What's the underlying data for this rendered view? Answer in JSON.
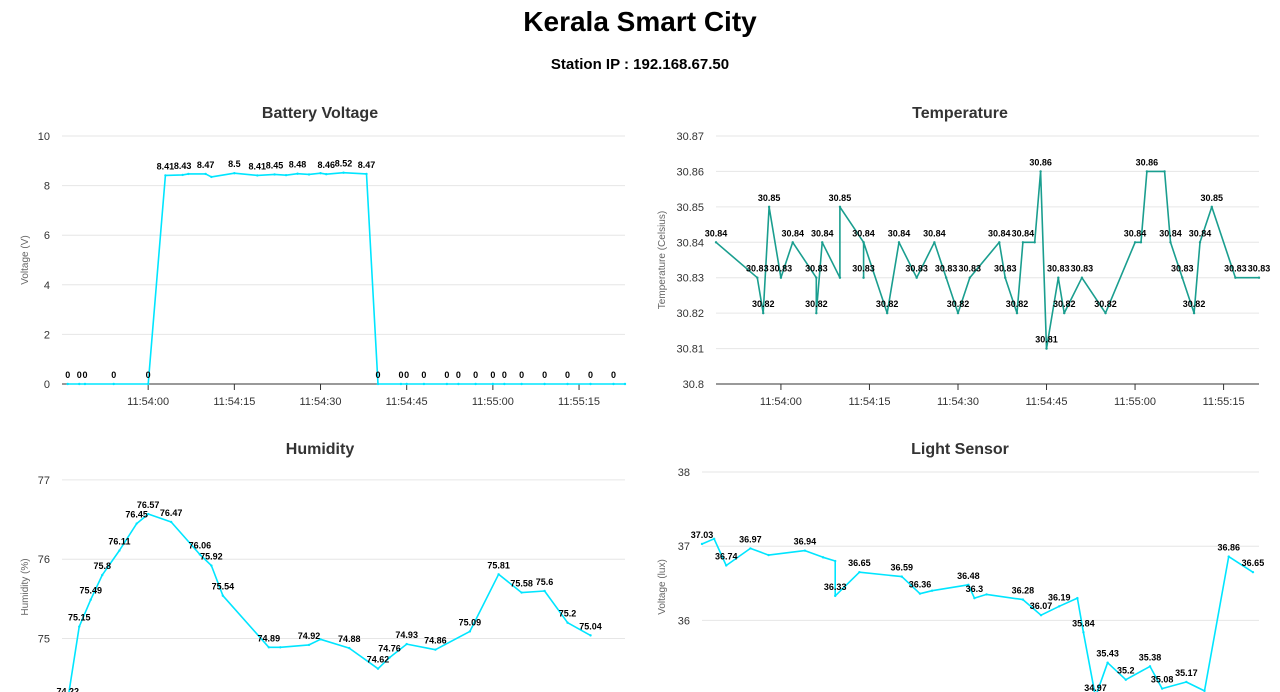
{
  "header": {
    "title": "Kerala Smart City",
    "station": "Station IP : 192.168.67.50"
  },
  "chart_data": [
    {
      "id": "battery",
      "type": "line",
      "title": "Battery Voltage",
      "ylabel": "Voltage (V)",
      "xlabel": "",
      "color": "#00e5ff",
      "ylim": [
        0,
        10
      ],
      "yticks": [
        "0",
        "2",
        "4",
        "6",
        "8",
        "10"
      ],
      "xlim": [
        "11:53:45",
        "11:55:23"
      ],
      "xticks": [
        "11:54:00",
        "11:54:15",
        "11:54:30",
        "11:54:45",
        "11:55:00",
        "11:55:15"
      ],
      "grid": true,
      "points": [
        {
          "x": "11:53:46",
          "y": 0,
          "label": "0"
        },
        {
          "x": "11:53:48",
          "y": 0,
          "label": "0"
        },
        {
          "x": "11:53:49",
          "y": 0,
          "label": "0"
        },
        {
          "x": "11:53:54",
          "y": 0,
          "label": "0"
        },
        {
          "x": "11:54:00",
          "y": 0,
          "label": "0"
        },
        {
          "x": "11:54:03",
          "y": 8.41,
          "label": "8.41"
        },
        {
          "x": "11:54:06",
          "y": 8.43,
          "label": "8.43"
        },
        {
          "x": "11:54:07",
          "y": 8.47
        },
        {
          "x": "11:54:10",
          "y": 8.47,
          "label": "8.47"
        },
        {
          "x": "11:54:11",
          "y": 8.35
        },
        {
          "x": "11:54:15",
          "y": 8.5,
          "label": "8.5"
        },
        {
          "x": "11:54:19",
          "y": 8.41,
          "label": "8.41"
        },
        {
          "x": "11:54:22",
          "y": 8.45,
          "label": "8.45"
        },
        {
          "x": "11:54:24",
          "y": 8.42
        },
        {
          "x": "11:54:26",
          "y": 8.48,
          "label": "8.48"
        },
        {
          "x": "11:54:28",
          "y": 8.45
        },
        {
          "x": "11:54:30",
          "y": 8.5
        },
        {
          "x": "11:54:31",
          "y": 8.46,
          "label": "8.46"
        },
        {
          "x": "11:54:34",
          "y": 8.52,
          "label": "8.52"
        },
        {
          "x": "11:54:38",
          "y": 8.47,
          "label": "8.47"
        },
        {
          "x": "11:54:40",
          "y": 0,
          "label": "0"
        },
        {
          "x": "11:54:44",
          "y": 0,
          "label": "0"
        },
        {
          "x": "11:54:45",
          "y": 0,
          "label": "0"
        },
        {
          "x": "11:54:48",
          "y": 0,
          "label": "0"
        },
        {
          "x": "11:54:52",
          "y": 0,
          "label": "0"
        },
        {
          "x": "11:54:54",
          "y": 0,
          "label": "0"
        },
        {
          "x": "11:54:57",
          "y": 0,
          "label": "0"
        },
        {
          "x": "11:55:00",
          "y": 0,
          "label": "0"
        },
        {
          "x": "11:55:02",
          "y": 0,
          "label": "0"
        },
        {
          "x": "11:55:05",
          "y": 0,
          "label": "0"
        },
        {
          "x": "11:55:09",
          "y": 0,
          "label": "0"
        },
        {
          "x": "11:55:13",
          "y": 0,
          "label": "0"
        },
        {
          "x": "11:55:17",
          "y": 0,
          "label": "0"
        },
        {
          "x": "11:55:21",
          "y": 0,
          "label": "0"
        },
        {
          "x": "11:55:23",
          "y": 0
        }
      ]
    },
    {
      "id": "temperature",
      "type": "line",
      "title": "Temperature",
      "ylabel": "Temperature (Celsius)",
      "xlabel": "",
      "color": "#1a9e8f",
      "ylim": [
        30.8,
        30.87
      ],
      "yticks": [
        "30.8",
        "30.81",
        "30.82",
        "30.83",
        "30.84",
        "30.85",
        "30.86",
        "30.87"
      ],
      "xlim": [
        "11:53:49",
        "11:55:21"
      ],
      "xticks": [
        "11:54:00",
        "11:54:15",
        "11:54:30",
        "11:54:45",
        "11:55:00",
        "11:55:15"
      ],
      "grid": true,
      "points": [
        {
          "x": "11:53:49",
          "y": 30.84,
          "label": "30.84"
        },
        {
          "x": "11:53:56",
          "y": 30.83,
          "label": "30.83"
        },
        {
          "x": "11:53:57",
          "y": 30.82,
          "label": "30.82"
        },
        {
          "x": "11:53:58",
          "y": 30.85,
          "label": "30.85"
        },
        {
          "x": "11:54:00",
          "y": 30.83,
          "label": "30.83"
        },
        {
          "x": "11:54:02",
          "y": 30.84,
          "label": "30.84"
        },
        {
          "x": "11:54:06",
          "y": 30.83,
          "label": "30.83"
        },
        {
          "x": "11:54:06",
          "y": 30.82,
          "label": "30.82"
        },
        {
          "x": "11:54:07",
          "y": 30.84,
          "label": "30.84"
        },
        {
          "x": "11:54:10",
          "y": 30.83
        },
        {
          "x": "11:54:10",
          "y": 30.85,
          "label": "30.85"
        },
        {
          "x": "11:54:14",
          "y": 30.84,
          "label": "30.84"
        },
        {
          "x": "11:54:14",
          "y": 30.83,
          "label": "30.83"
        },
        {
          "x": "11:54:14",
          "y": 30.84
        },
        {
          "x": "11:54:18",
          "y": 30.82,
          "label": "30.82"
        },
        {
          "x": "11:54:20",
          "y": 30.84,
          "label": "30.84"
        },
        {
          "x": "11:54:23",
          "y": 30.83,
          "label": "30.83"
        },
        {
          "x": "11:54:26",
          "y": 30.84,
          "label": "30.84"
        },
        {
          "x": "11:54:28",
          "y": 30.83,
          "label": "30.83"
        },
        {
          "x": "11:54:30",
          "y": 30.82,
          "label": "30.82"
        },
        {
          "x": "11:54:32",
          "y": 30.83,
          "label": "30.83"
        },
        {
          "x": "11:54:37",
          "y": 30.84,
          "label": "30.84"
        },
        {
          "x": "11:54:38",
          "y": 30.83,
          "label": "30.83"
        },
        {
          "x": "11:54:40",
          "y": 30.82,
          "label": "30.82"
        },
        {
          "x": "11:54:41",
          "y": 30.84,
          "label": "30.84"
        },
        {
          "x": "11:54:43",
          "y": 30.84
        },
        {
          "x": "11:54:44",
          "y": 30.86,
          "label": "30.86"
        },
        {
          "x": "11:54:45",
          "y": 30.81,
          "label": "30.81"
        },
        {
          "x": "11:54:47",
          "y": 30.83,
          "label": "30.83"
        },
        {
          "x": "11:54:48",
          "y": 30.82,
          "label": "30.82"
        },
        {
          "x": "11:54:51",
          "y": 30.83,
          "label": "30.83"
        },
        {
          "x": "11:54:55",
          "y": 30.82,
          "label": "30.82"
        },
        {
          "x": "11:55:00",
          "y": 30.84,
          "label": "30.84"
        },
        {
          "x": "11:55:01",
          "y": 30.84
        },
        {
          "x": "11:55:02",
          "y": 30.86,
          "label": "30.86"
        },
        {
          "x": "11:55:05",
          "y": 30.86
        },
        {
          "x": "11:55:06",
          "y": 30.84,
          "label": "30.84"
        },
        {
          "x": "11:55:08",
          "y": 30.83,
          "label": "30.83"
        },
        {
          "x": "11:55:10",
          "y": 30.82,
          "label": "30.82"
        },
        {
          "x": "11:55:11",
          "y": 30.84,
          "label": "30.84"
        },
        {
          "x": "11:55:13",
          "y": 30.85,
          "label": "30.85"
        },
        {
          "x": "11:55:17",
          "y": 30.83,
          "label": "30.83"
        },
        {
          "x": "11:55:21",
          "y": 30.83,
          "label": "30.83"
        }
      ]
    },
    {
      "id": "humidity",
      "type": "line",
      "title": "Humidity",
      "ylabel": "Humidity (%)",
      "xlabel": "",
      "color": "#00e5ff",
      "ylim": [
        74.2,
        77.1
      ],
      "yticks": [
        "75",
        "76",
        "77"
      ],
      "xlim": [
        "11:53:45",
        "11:55:23"
      ],
      "xticks": [],
      "grid": true,
      "points": [
        {
          "x": "11:53:46",
          "y": 74.22,
          "label": "74.22"
        },
        {
          "x": "11:53:48",
          "y": 75.15,
          "label": "75.15"
        },
        {
          "x": "11:53:50",
          "y": 75.49,
          "label": "75.49"
        },
        {
          "x": "11:53:52",
          "y": 75.8,
          "label": "75.8"
        },
        {
          "x": "11:53:55",
          "y": 76.11,
          "label": "76.11"
        },
        {
          "x": "11:53:58",
          "y": 76.45,
          "label": "76.45"
        },
        {
          "x": "11:54:00",
          "y": 76.57,
          "label": "76.57"
        },
        {
          "x": "11:54:04",
          "y": 76.47,
          "label": "76.47"
        },
        {
          "x": "11:54:09",
          "y": 76.06,
          "label": "76.06"
        },
        {
          "x": "11:54:11",
          "y": 75.92,
          "label": "75.92"
        },
        {
          "x": "11:54:13",
          "y": 75.54,
          "label": "75.54"
        },
        {
          "x": "11:54:21",
          "y": 74.89,
          "label": "74.89"
        },
        {
          "x": "11:54:23",
          "y": 74.89
        },
        {
          "x": "11:54:28",
          "y": 74.92,
          "label": "74.92"
        },
        {
          "x": "11:54:30",
          "y": 74.99
        },
        {
          "x": "11:54:35",
          "y": 74.88,
          "label": "74.88"
        },
        {
          "x": "11:54:40",
          "y": 74.62,
          "label": "74.62"
        },
        {
          "x": "11:54:42",
          "y": 74.76,
          "label": "74.76"
        },
        {
          "x": "11:54:45",
          "y": 74.93,
          "label": "74.93"
        },
        {
          "x": "11:54:50",
          "y": 74.86,
          "label": "74.86"
        },
        {
          "x": "11:54:56",
          "y": 75.09,
          "label": "75.09"
        },
        {
          "x": "11:55:01",
          "y": 75.81,
          "label": "75.81"
        },
        {
          "x": "11:55:05",
          "y": 75.58,
          "label": "75.58"
        },
        {
          "x": "11:55:09",
          "y": 75.6,
          "label": "75.6"
        },
        {
          "x": "11:55:13",
          "y": 75.2,
          "label": "75.2"
        },
        {
          "x": "11:55:17",
          "y": 75.04,
          "label": "75.04"
        }
      ]
    },
    {
      "id": "light",
      "type": "line",
      "title": "Light Sensor",
      "ylabel": "Voltage (lux)",
      "xlabel": "",
      "color": "#00e5ff",
      "ylim": [
        34.9,
        38.0
      ],
      "yticks": [
        "35",
        "36",
        "37",
        "38"
      ],
      "xlim": [
        "11:53:49",
        "11:55:21"
      ],
      "xticks": [],
      "grid": true,
      "points": [
        {
          "x": "11:53:49",
          "y": 37.03,
          "label": "37.03"
        },
        {
          "x": "11:53:51",
          "y": 37.1
        },
        {
          "x": "11:53:53",
          "y": 36.74,
          "label": "36.74"
        },
        {
          "x": "11:53:57",
          "y": 36.97,
          "label": "36.97"
        },
        {
          "x": "11:54:00",
          "y": 36.88
        },
        {
          "x": "11:54:06",
          "y": 36.94,
          "label": "36.94"
        },
        {
          "x": "11:54:09",
          "y": 36.85
        },
        {
          "x": "11:54:11",
          "y": 36.8
        },
        {
          "x": "11:54:11",
          "y": 36.33,
          "label": "36.33"
        },
        {
          "x": "11:54:15",
          "y": 36.65,
          "label": "36.65"
        },
        {
          "x": "11:54:22",
          "y": 36.59,
          "label": "36.59"
        },
        {
          "x": "11:54:25",
          "y": 36.36,
          "label": "36.36"
        },
        {
          "x": "11:54:27",
          "y": 36.4
        },
        {
          "x": "11:54:33",
          "y": 36.48,
          "label": "36.48"
        },
        {
          "x": "11:54:34",
          "y": 36.3,
          "label": "36.3"
        },
        {
          "x": "11:54:36",
          "y": 36.35
        },
        {
          "x": "11:54:42",
          "y": 36.28,
          "label": "36.28"
        },
        {
          "x": "11:54:45",
          "y": 36.07,
          "label": "36.07"
        },
        {
          "x": "11:54:48",
          "y": 36.19,
          "label": "36.19"
        },
        {
          "x": "11:54:51",
          "y": 36.3
        },
        {
          "x": "11:54:52",
          "y": 35.84,
          "label": "35.84"
        },
        {
          "x": "11:54:54",
          "y": 34.97,
          "label": "34.97"
        },
        {
          "x": "11:54:56",
          "y": 35.43,
          "label": "35.43"
        },
        {
          "x": "11:54:59",
          "y": 35.2,
          "label": "35.2"
        },
        {
          "x": "11:55:03",
          "y": 35.38,
          "label": "35.38"
        },
        {
          "x": "11:55:05",
          "y": 35.08,
          "label": "35.08"
        },
        {
          "x": "11:55:09",
          "y": 35.17,
          "label": "35.17"
        },
        {
          "x": "11:55:12",
          "y": 35.05
        },
        {
          "x": "11:55:16",
          "y": 36.86,
          "label": "36.86"
        },
        {
          "x": "11:55:20",
          "y": 36.65,
          "label": "36.65"
        }
      ]
    }
  ]
}
